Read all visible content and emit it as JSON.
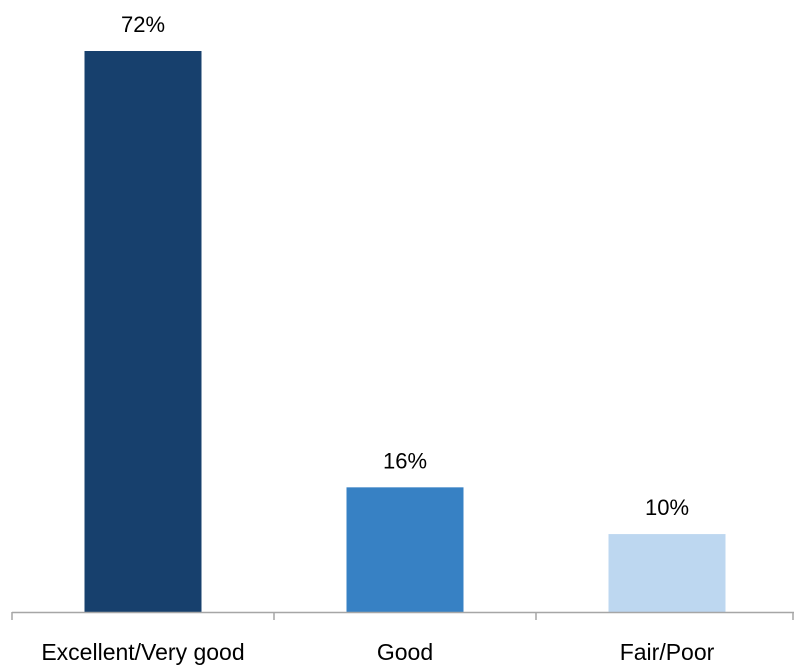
{
  "chart_data": {
    "type": "bar",
    "categories": [
      "Excellent/Very good",
      "Good",
      "Fair/Poor"
    ],
    "values": [
      72,
      16,
      10
    ],
    "data_labels": [
      "72%",
      "16%",
      "10%"
    ],
    "colors": [
      "#17406d",
      "#3781c4",
      "#bdd7f0"
    ],
    "title": "",
    "xlabel": "",
    "ylabel": "",
    "ylim": [
      0,
      72
    ],
    "grid": false,
    "legend": "none",
    "axis_color": "#a6a6a6"
  }
}
